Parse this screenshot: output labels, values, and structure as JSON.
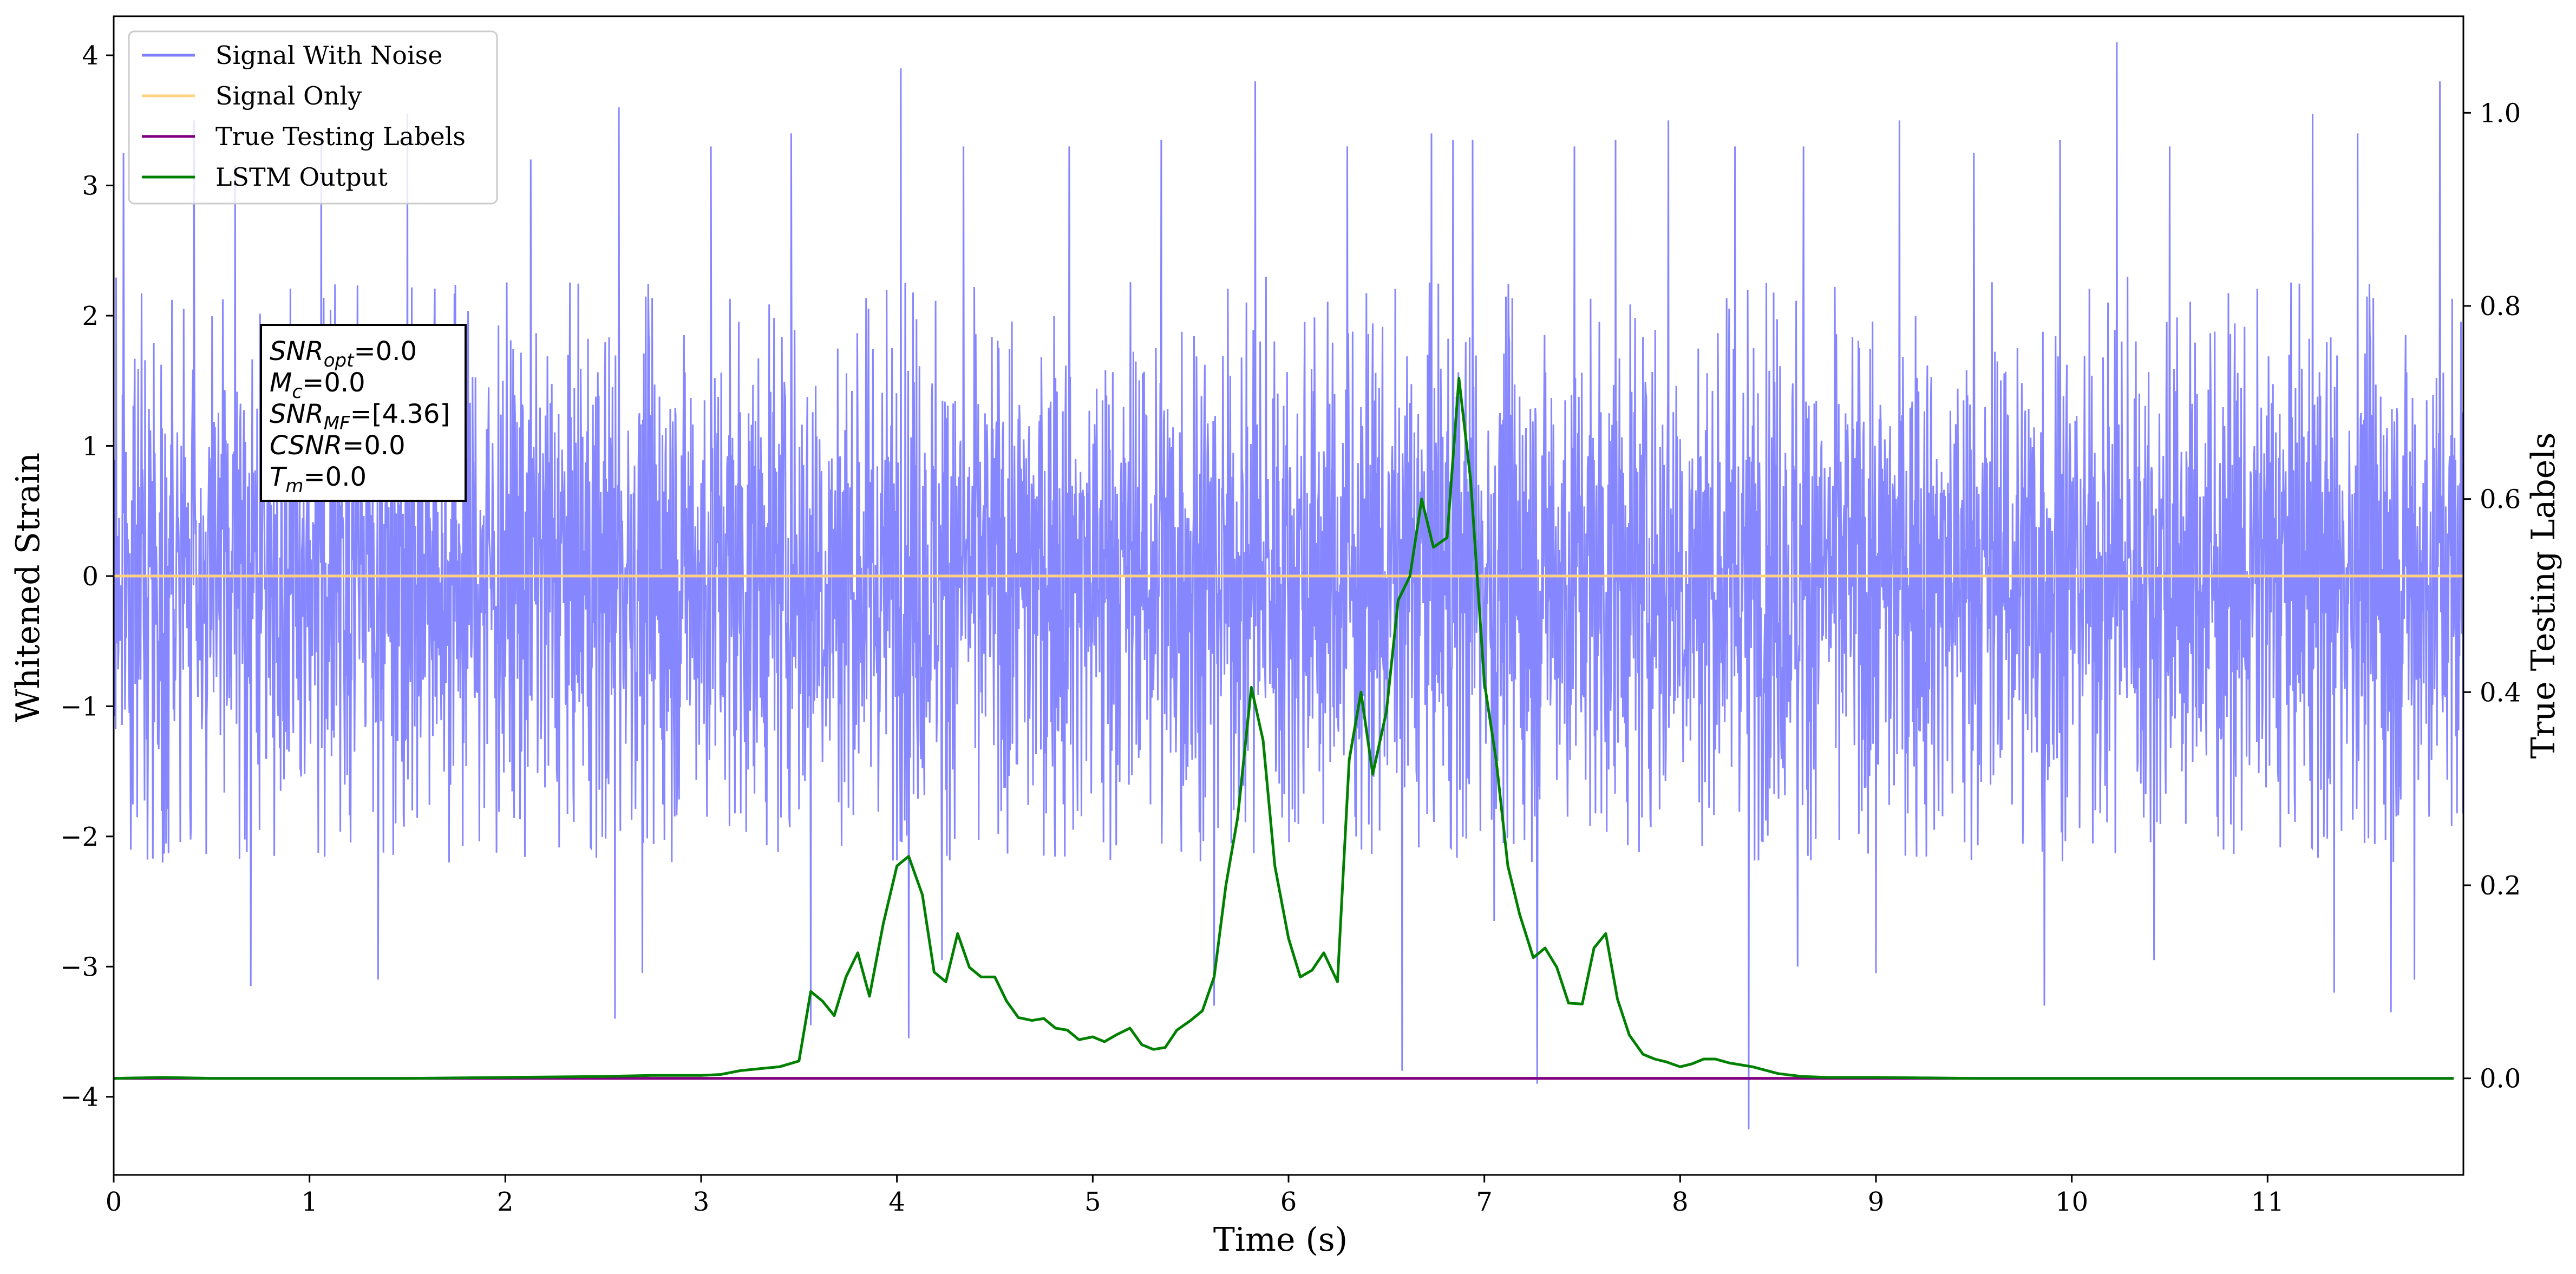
{
  "chart_data": {
    "type": "line",
    "xlabel": "Time (s)",
    "ylabel_left": "Whitened Strain",
    "ylabel_right": "True Testing Labels",
    "xlim": [
      0,
      12
    ],
    "ylim_left": [
      -4.6,
      4.3
    ],
    "ylim_right": [
      -0.1,
      1.1
    ],
    "x_ticks": [
      0,
      1,
      2,
      3,
      4,
      5,
      6,
      7,
      8,
      9,
      10,
      11
    ],
    "x_tick_labels": [
      "0",
      "1",
      "2",
      "3",
      "4",
      "5",
      "6",
      "7",
      "8",
      "9",
      "10",
      "11"
    ],
    "y_left_ticks": [
      -4,
      -3,
      -2,
      -1,
      0,
      1,
      2,
      3,
      4
    ],
    "y_left_tick_labels": [
      "−4",
      "−3",
      "−2",
      "−1",
      "0",
      "1",
      "2",
      "3",
      "4"
    ],
    "y_right_ticks": [
      0.0,
      0.2,
      0.4,
      0.6,
      0.8,
      1.0
    ],
    "y_right_tick_labels": [
      "0.0",
      "0.2",
      "0.4",
      "0.6",
      "0.8",
      "1.0"
    ],
    "grid": false,
    "legend_position": "top-left",
    "series": [
      {
        "name": "Signal With Noise",
        "axis": "left",
        "color": "#7f7fff",
        "kind": "noise",
        "sample_rate_hz": 400,
        "typical_envelope": [
          -2.2,
          2.3
        ],
        "seed": 7,
        "spikes": [
          {
            "x": 0.05,
            "y": 3.25
          },
          {
            "x": 0.41,
            "y": 3.5
          },
          {
            "x": 0.62,
            "y": 3.15
          },
          {
            "x": 1.06,
            "y": 3.4
          },
          {
            "x": 1.5,
            "y": 3.55
          },
          {
            "x": 2.13,
            "y": 3.2
          },
          {
            "x": 2.58,
            "y": 3.6
          },
          {
            "x": 3.05,
            "y": 3.3
          },
          {
            "x": 3.46,
            "y": 3.4
          },
          {
            "x": 4.02,
            "y": 3.9
          },
          {
            "x": 4.34,
            "y": 3.3
          },
          {
            "x": 4.88,
            "y": 3.3
          },
          {
            "x": 5.35,
            "y": 3.35
          },
          {
            "x": 5.83,
            "y": 3.8
          },
          {
            "x": 6.3,
            "y": 3.3
          },
          {
            "x": 6.73,
            "y": 3.4
          },
          {
            "x": 6.84,
            "y": 3.35
          },
          {
            "x": 6.94,
            "y": 3.35
          },
          {
            "x": 7.46,
            "y": 3.3
          },
          {
            "x": 7.67,
            "y": 3.35
          },
          {
            "x": 7.94,
            "y": 3.5
          },
          {
            "x": 8.28,
            "y": 3.3
          },
          {
            "x": 8.63,
            "y": 3.3
          },
          {
            "x": 9.12,
            "y": 3.5
          },
          {
            "x": 9.5,
            "y": 3.25
          },
          {
            "x": 9.94,
            "y": 3.35
          },
          {
            "x": 10.23,
            "y": 4.1
          },
          {
            "x": 10.5,
            "y": 3.3
          },
          {
            "x": 11.23,
            "y": 3.55
          },
          {
            "x": 11.46,
            "y": 3.4
          },
          {
            "x": 11.88,
            "y": 3.8
          },
          {
            "x": 0.7,
            "y": -3.15
          },
          {
            "x": 0.25,
            "y": -2.2
          },
          {
            "x": 1.35,
            "y": -3.1
          },
          {
            "x": 2.56,
            "y": -3.4
          },
          {
            "x": 2.7,
            "y": -3.05
          },
          {
            "x": 3.56,
            "y": -3.45
          },
          {
            "x": 4.06,
            "y": -3.55
          },
          {
            "x": 4.23,
            "y": -2.95
          },
          {
            "x": 5.62,
            "y": -3.3
          },
          {
            "x": 6.58,
            "y": -3.8
          },
          {
            "x": 7.05,
            "y": -2.65
          },
          {
            "x": 7.27,
            "y": -3.9
          },
          {
            "x": 8.35,
            "y": -4.25
          },
          {
            "x": 8.6,
            "y": -3.0
          },
          {
            "x": 9.0,
            "y": -3.05
          },
          {
            "x": 9.86,
            "y": -3.3
          },
          {
            "x": 10.42,
            "y": -2.95
          },
          {
            "x": 11.34,
            "y": -3.2
          },
          {
            "x": 11.63,
            "y": -3.35
          },
          {
            "x": 11.75,
            "y": -3.1
          }
        ]
      },
      {
        "name": "Signal Only",
        "axis": "left",
        "color": "#ffd27f",
        "x": [
          0,
          12
        ],
        "y": [
          0,
          0
        ]
      },
      {
        "name": "True Testing Labels",
        "axis": "right",
        "color": "#800080",
        "x": [
          0,
          11.95
        ],
        "y": [
          0,
          0
        ]
      },
      {
        "name": "LSTM Output",
        "axis": "right",
        "color": "#008000",
        "x": [
          0,
          0.25,
          0.5,
          1,
          1.5,
          2,
          2.5,
          2.75,
          3,
          3.1,
          3.2,
          3.3,
          3.4,
          3.5,
          3.56,
          3.62,
          3.68,
          3.74,
          3.8,
          3.86,
          3.93,
          4.0,
          4.06,
          4.13,
          4.19,
          4.25,
          4.31,
          4.37,
          4.43,
          4.5,
          4.56,
          4.62,
          4.69,
          4.75,
          4.81,
          4.87,
          4.93,
          5.0,
          5.06,
          5.12,
          5.19,
          5.25,
          5.31,
          5.37,
          5.43,
          5.5,
          5.56,
          5.62,
          5.68,
          5.74,
          5.81,
          5.87,
          5.93,
          6.0,
          6.06,
          6.12,
          6.18,
          6.25,
          6.31,
          6.37,
          6.43,
          6.5,
          6.56,
          6.62,
          6.68,
          6.74,
          6.81,
          6.87,
          6.93,
          7.0,
          7.06,
          7.12,
          7.18,
          7.25,
          7.31,
          7.37,
          7.43,
          7.5,
          7.56,
          7.62,
          7.68,
          7.74,
          7.81,
          7.87,
          7.93,
          8.0,
          8.06,
          8.12,
          8.18,
          8.25,
          8.37,
          8.5,
          8.62,
          8.75,
          9,
          9.5,
          10,
          10.5,
          11,
          11.5,
          11.95
        ],
        "y": [
          0.0,
          0.001,
          0.0,
          0.0,
          0.0,
          0.001,
          0.002,
          0.003,
          0.003,
          0.004,
          0.008,
          0.01,
          0.012,
          0.018,
          0.09,
          0.08,
          0.065,
          0.105,
          0.13,
          0.085,
          0.16,
          0.22,
          0.23,
          0.19,
          0.11,
          0.1,
          0.15,
          0.115,
          0.105,
          0.105,
          0.08,
          0.063,
          0.06,
          0.062,
          0.052,
          0.05,
          0.04,
          0.043,
          0.038,
          0.045,
          0.052,
          0.035,
          0.03,
          0.032,
          0.05,
          0.06,
          0.07,
          0.105,
          0.2,
          0.27,
          0.405,
          0.35,
          0.22,
          0.145,
          0.105,
          0.112,
          0.13,
          0.1,
          0.33,
          0.4,
          0.315,
          0.38,
          0.495,
          0.52,
          0.6,
          0.55,
          0.56,
          0.725,
          0.62,
          0.41,
          0.33,
          0.22,
          0.17,
          0.125,
          0.135,
          0.115,
          0.078,
          0.077,
          0.135,
          0.15,
          0.082,
          0.045,
          0.025,
          0.02,
          0.017,
          0.012,
          0.015,
          0.02,
          0.02,
          0.016,
          0.012,
          0.005,
          0.002,
          0.001,
          0.001,
          0.0,
          0.0,
          0.0,
          0.0,
          0.0,
          0.0
        ]
      }
    ],
    "annotation_lines": [
      {
        "main": "SNR",
        "sub": "opt",
        "rest": "=0.0"
      },
      {
        "main": "M",
        "sub": "c",
        "rest": "=0.0"
      },
      {
        "main": "SNR",
        "sub": "MF",
        "rest": "=[4.36]"
      },
      {
        "main": "CSNR",
        "sub": "",
        "rest": "=0.0"
      },
      {
        "main": "T",
        "sub": "m",
        "rest": "=0.0"
      }
    ]
  }
}
